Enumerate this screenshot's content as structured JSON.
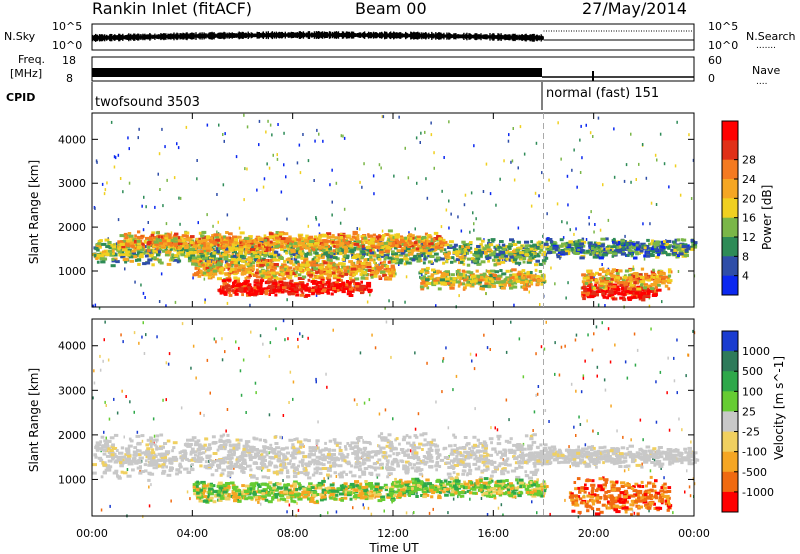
{
  "header": {
    "station": "Rankin Inlet (fitACF)",
    "beam": "Beam 00",
    "date": "27/May/2014"
  },
  "top_panels": {
    "nsky_label": "N.Sky",
    "nsky_ticks": [
      "10^5",
      "10^0"
    ],
    "nsearch_label": "N.Search",
    "nsearch_ticks": [
      "10^5",
      "10^0"
    ],
    "freq_label": "Freq.",
    "freq_unit": "[MHz]",
    "freq_ticks": [
      "18",
      "8"
    ],
    "nave_label": "Nave",
    "nave_ticks": [
      "60",
      "0"
    ],
    "cpid_label": "CPID",
    "modes": [
      {
        "label": "twofsound 3503",
        "start_hour": 0,
        "end_hour": 18
      },
      {
        "label": "normal (fast) 151",
        "start_hour": 18,
        "end_hour": 24
      }
    ]
  },
  "chart_data": [
    {
      "type": "heatmap",
      "name": "power",
      "xlabel": "Time UT",
      "ylabel": "Slant Range [km]",
      "xlim": [
        0,
        24
      ],
      "ylim": [
        180,
        4600
      ],
      "xticks": [
        "00:00",
        "04:00",
        "08:00",
        "12:00",
        "16:00",
        "20:00",
        "00:00"
      ],
      "yticks": [
        1000,
        2000,
        3000,
        4000
      ],
      "colorbar": {
        "label": "Power [dB]",
        "ticks": [
          4,
          8,
          12,
          16,
          20,
          24,
          28
        ],
        "colors": [
          "#0b28f0",
          "#2f4ea8",
          "#2e8b57",
          "#7ab648",
          "#f0d020",
          "#f5a623",
          "#f47a20",
          "#e03018",
          "#ff0000"
        ]
      },
      "bands": [
        {
          "t0": 0,
          "t1": 18,
          "r_center": 1450,
          "r_width": 320,
          "level": 3
        },
        {
          "t0": 1,
          "t1": 14,
          "r_center": 1700,
          "r_width": 250,
          "level": 5
        },
        {
          "t0": 4,
          "t1": 12,
          "r_center": 1050,
          "r_width": 250,
          "level": 5
        },
        {
          "t0": 5,
          "t1": 11,
          "r_center": 650,
          "r_width": 200,
          "level": 8
        },
        {
          "t0": 13,
          "t1": 18,
          "r_center": 850,
          "r_width": 250,
          "level": 4
        },
        {
          "t0": 18,
          "t1": 24,
          "r_center": 1550,
          "r_width": 250,
          "level": 2
        },
        {
          "t0": 19.5,
          "t1": 22.5,
          "r_center": 550,
          "r_width": 200,
          "level": 8
        },
        {
          "t0": 19.5,
          "t1": 23,
          "r_center": 850,
          "r_width": 250,
          "level": 5
        }
      ]
    },
    {
      "type": "heatmap",
      "name": "velocity",
      "xlabel": "Time UT",
      "ylabel": "Slant Range [km]",
      "xlim": [
        0,
        24
      ],
      "ylim": [
        180,
        4600
      ],
      "xticks": [
        "00:00",
        "04:00",
        "08:00",
        "12:00",
        "16:00",
        "20:00",
        "00:00"
      ],
      "yticks": [
        1000,
        2000,
        3000,
        4000
      ],
      "colorbar": {
        "label": "Velocity [m s^-1]",
        "ticks": [
          "1000",
          "500",
          "100",
          "25",
          "-25",
          "-100",
          "-500",
          "-1000"
        ],
        "colors": [
          "#1a3cd0",
          "#2e7a5a",
          "#2ea84a",
          "#66cc33",
          "#c8c8c8",
          "#f0d060",
          "#f5a623",
          "#f06a10",
          "#ff0000"
        ]
      },
      "bands": [
        {
          "t0": 0,
          "t1": 18,
          "r_center": 1550,
          "r_width": 550,
          "cls": "gray"
        },
        {
          "t0": 18,
          "t1": 24,
          "r_center": 1550,
          "r_width": 250,
          "cls": "gray"
        },
        {
          "t0": 4,
          "t1": 12,
          "r_center": 750,
          "r_width": 250,
          "cls": "mixed"
        },
        {
          "t0": 12,
          "t1": 18,
          "r_center": 850,
          "r_width": 250,
          "cls": "mixed"
        },
        {
          "t0": 19,
          "t1": 23,
          "r_center": 650,
          "r_width": 450,
          "cls": "orange"
        }
      ]
    }
  ]
}
